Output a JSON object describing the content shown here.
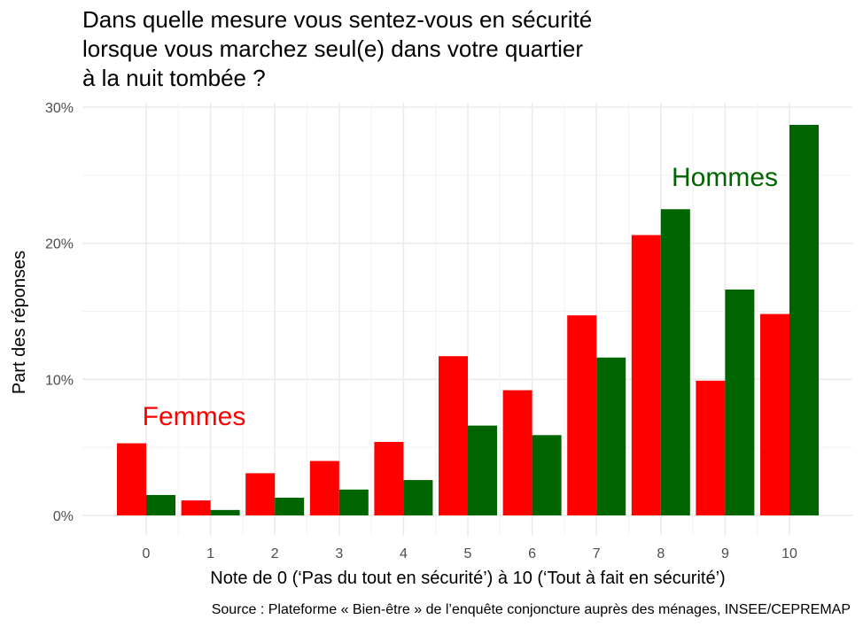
{
  "chart_data": {
    "type": "bar",
    "title_lines": [
      "Dans quelle mesure vous sentez-vous en sécurité",
      "lorsque vous marchez seul(e) dans votre quartier",
      "à la nuit tombée ?"
    ],
    "xlabel": "Note de 0 (‘Pas du tout en sécurité’) à 10 (‘Tout à fait en sécurité’)",
    "ylabel": "Part des réponses",
    "caption": "Source : Plateforme « Bien-être » de l’enquête conjoncture auprès des ménages, INSEE/CEPREMAP",
    "categories": [
      "0",
      "1",
      "2",
      "3",
      "4",
      "5",
      "6",
      "7",
      "8",
      "9",
      "10"
    ],
    "y_ticks": [
      0,
      10,
      20,
      30
    ],
    "y_tick_labels": [
      "0%",
      "10%",
      "20%",
      "30%"
    ],
    "ylim": [
      0,
      30
    ],
    "grid": true,
    "series": [
      {
        "name": "Femmes",
        "color": "#ff0000",
        "values": [
          5.3,
          1.1,
          3.1,
          4.0,
          5.4,
          11.7,
          9.2,
          14.7,
          20.6,
          9.9,
          14.8
        ]
      },
      {
        "name": "Hommes",
        "color": "#006400",
        "values": [
          1.5,
          0.4,
          1.3,
          1.9,
          2.6,
          6.6,
          5.9,
          11.6,
          22.5,
          16.6,
          28.7
        ]
      }
    ]
  }
}
